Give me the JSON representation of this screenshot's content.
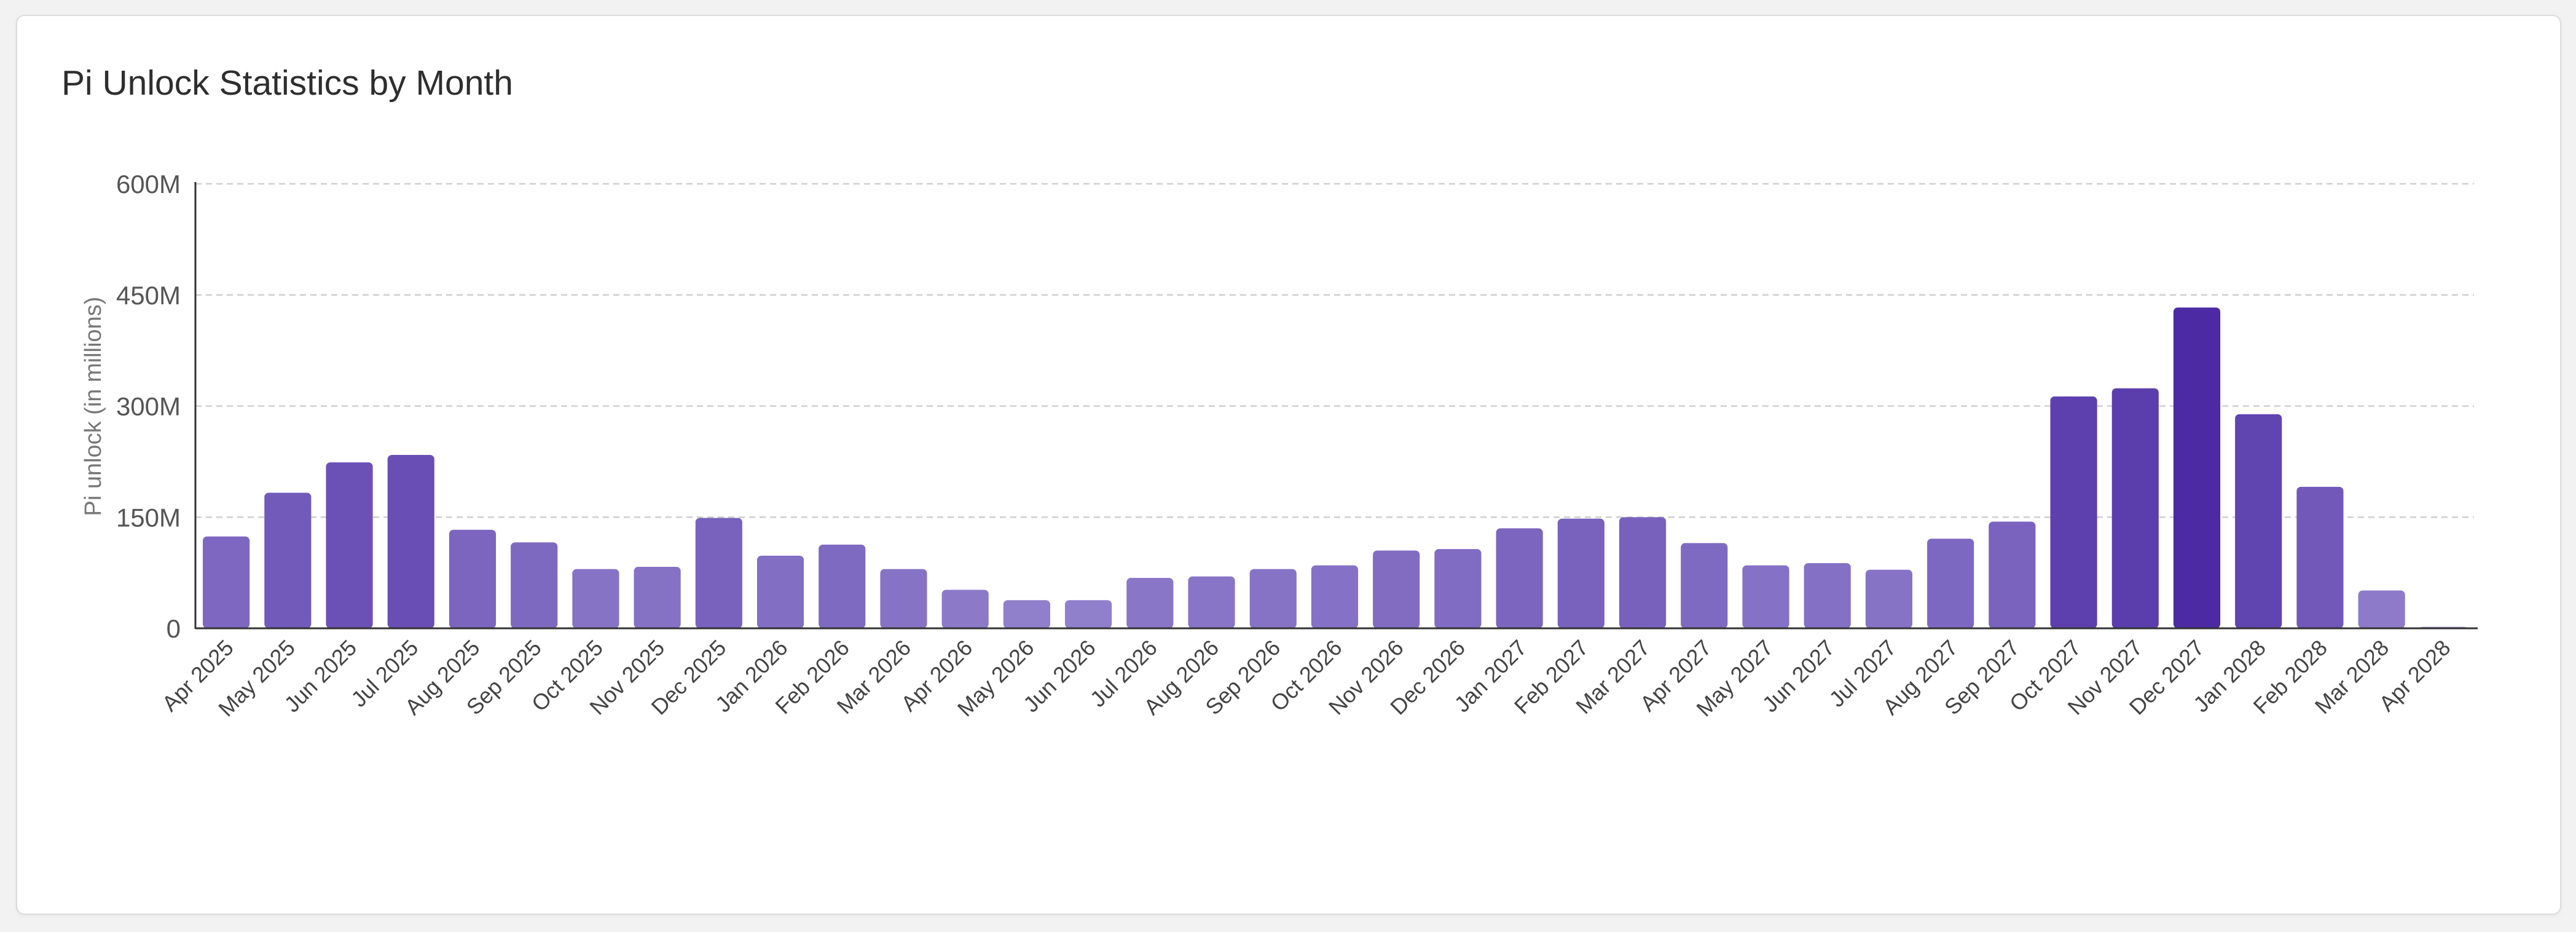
{
  "card": {
    "title": "Pi Unlock Statistics by Month"
  },
  "colors": {
    "bar_light": "#9d8fd3",
    "bar_dark": "#4b2aa3",
    "grid": "#cfcfcf",
    "axis": "#333333"
  },
  "chart_data": {
    "type": "bar",
    "title": "Pi Unlock Statistics by Month",
    "xlabel": "",
    "ylabel": "Pi unlock (in millions)",
    "ylim": [
      0,
      600
    ],
    "yticks": [
      0,
      150,
      300,
      450,
      600
    ],
    "ytick_labels": [
      "0",
      "150M",
      "300M",
      "450M",
      "600M"
    ],
    "grid": "horizontal dashed",
    "categories": [
      "Apr 2025",
      "May 2025",
      "Jun 2025",
      "Jul 2025",
      "Aug 2025",
      "Sep 2025",
      "Oct 2025",
      "Nov 2025",
      "Dec 2025",
      "Jan 2026",
      "Feb 2026",
      "Mar 2026",
      "Apr 2026",
      "May 2026",
      "Jun 2026",
      "Jul 2026",
      "Aug 2026",
      "Sep 2026",
      "Oct 2026",
      "Nov 2026",
      "Dec 2026",
      "Jan 2027",
      "Feb 2027",
      "Mar 2027",
      "Apr 2027",
      "May 2027",
      "Jun 2027",
      "Jul 2027",
      "Aug 2027",
      "Sep 2027",
      "Oct 2027",
      "Nov 2027",
      "Dec 2027",
      "Jan 2028",
      "Feb 2028",
      "Mar 2028",
      "Apr 2028"
    ],
    "values": [
      124,
      183,
      224,
      234,
      133,
      116,
      80,
      83,
      149,
      98,
      113,
      80,
      52,
      38,
      38,
      68,
      70,
      80,
      85,
      105,
      107,
      135,
      148,
      150,
      115,
      85,
      88,
      79,
      121,
      144,
      313,
      324,
      433,
      289,
      191,
      51,
      2
    ]
  }
}
